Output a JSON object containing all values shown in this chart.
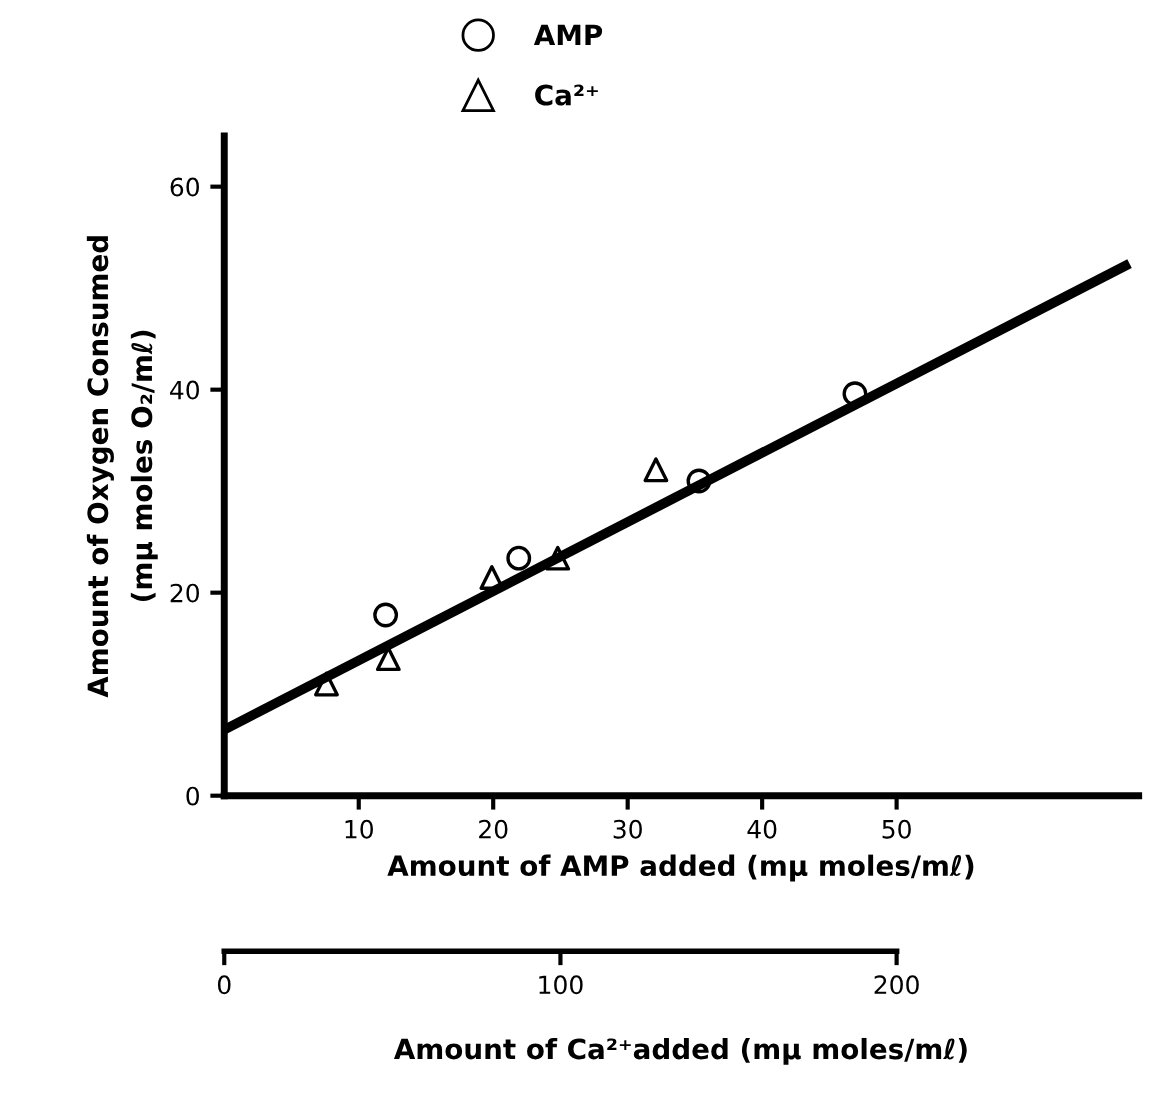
{
  "chart_data": {
    "type": "scatter",
    "xlabel": "Amount of AMP added (mμ moles/mℓ)",
    "ylabel": "Amount of Oxygen Consumed\n(mμ moles O₂/mℓ)",
    "x2label": "Amount of Ca²⁺added (mμ moles/mℓ)",
    "xlim": [
      0,
      68
    ],
    "xticks": [
      10,
      20,
      30,
      40,
      50
    ],
    "x2lim": [
      0,
      272
    ],
    "x2ticks": [
      0,
      100,
      200
    ],
    "ylim": [
      0,
      65
    ],
    "yticks": [
      0,
      20,
      40,
      60
    ],
    "legend": "top",
    "series": [
      {
        "name": "AMP",
        "marker": "circle",
        "color": "#000000",
        "x": [
          12.0,
          21.9,
          35.3,
          46.9
        ],
        "values": [
          17.8,
          23.4,
          31.0,
          39.6
        ]
      },
      {
        "name": "Ca²⁺",
        "marker": "triangle",
        "color": "#000000",
        "axis": "x2",
        "x": [
          30.4,
          48.8,
          79.6,
          99.2,
          128.4
        ],
        "values": [
          11.0,
          13.5,
          21.5,
          23.4,
          32.1
        ]
      },
      {
        "type": "line",
        "line_style": "solid",
        "color": "#000000",
        "x": [
          0,
          67
        ],
        "values": [
          6.5,
          52.2
        ]
      }
    ]
  }
}
